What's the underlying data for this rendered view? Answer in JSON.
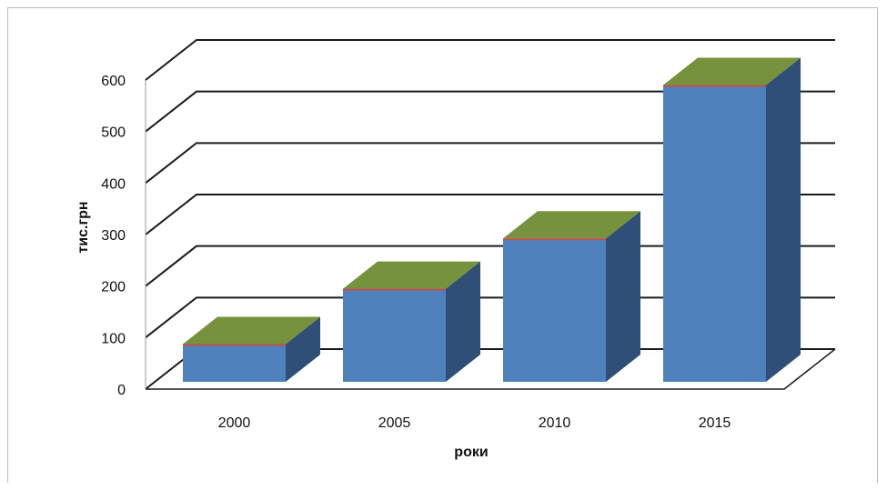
{
  "chart_data": {
    "type": "bar",
    "categories": [
      "2000",
      "2005",
      "2010",
      "2015"
    ],
    "series": [
      {
        "values": [
          75,
          185,
          285,
          590
        ]
      }
    ],
    "ylabel": "тис.грн",
    "xlabel": "роки",
    "ylim": [
      0,
      600
    ],
    "yticks": [
      0,
      100,
      200,
      300,
      400,
      500,
      600
    ],
    "grid": true,
    "colors": {
      "front": "#4f81bd",
      "side": "#2f4f76",
      "top": "#76923c",
      "stripe": "#c0504d"
    }
  }
}
